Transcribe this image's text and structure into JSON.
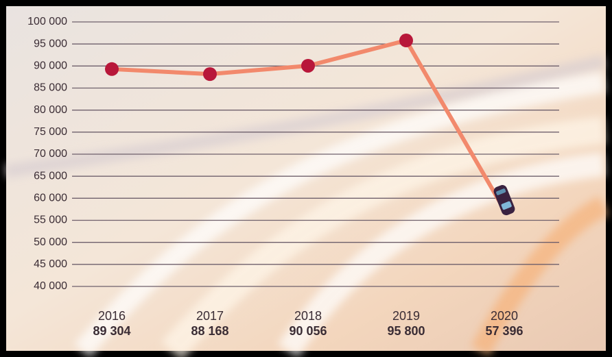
{
  "chart_data": {
    "type": "line",
    "categories": [
      "2016",
      "2017",
      "2018",
      "2019",
      "2020"
    ],
    "values": [
      89304,
      88168,
      90056,
      95800,
      57396
    ],
    "value_labels": [
      "89 304",
      "88 168",
      "90 056",
      "95 800",
      "57 396"
    ],
    "color": "#f2896c",
    "marker_color": "#b8173a",
    "ylim": [
      40000,
      100000
    ],
    "yticks": [
      {
        "value": 40000,
        "label": "40 000"
      },
      {
        "value": 45000,
        "label": "45 000"
      },
      {
        "value": 50000,
        "label": "50 000"
      },
      {
        "value": 55000,
        "label": "55 000"
      },
      {
        "value": 60000,
        "label": "60 000"
      },
      {
        "value": 65000,
        "label": "65 000"
      },
      {
        "value": 70000,
        "label": "70 000"
      },
      {
        "value": 75000,
        "label": "75 000"
      },
      {
        "value": 80000,
        "label": "80 000"
      },
      {
        "value": 85000,
        "label": "85 000"
      },
      {
        "value": 90000,
        "label": "90 000"
      },
      {
        "value": 95000,
        "label": "95 000"
      },
      {
        "value": 100000,
        "label": "100 000"
      }
    ],
    "grid": true
  }
}
